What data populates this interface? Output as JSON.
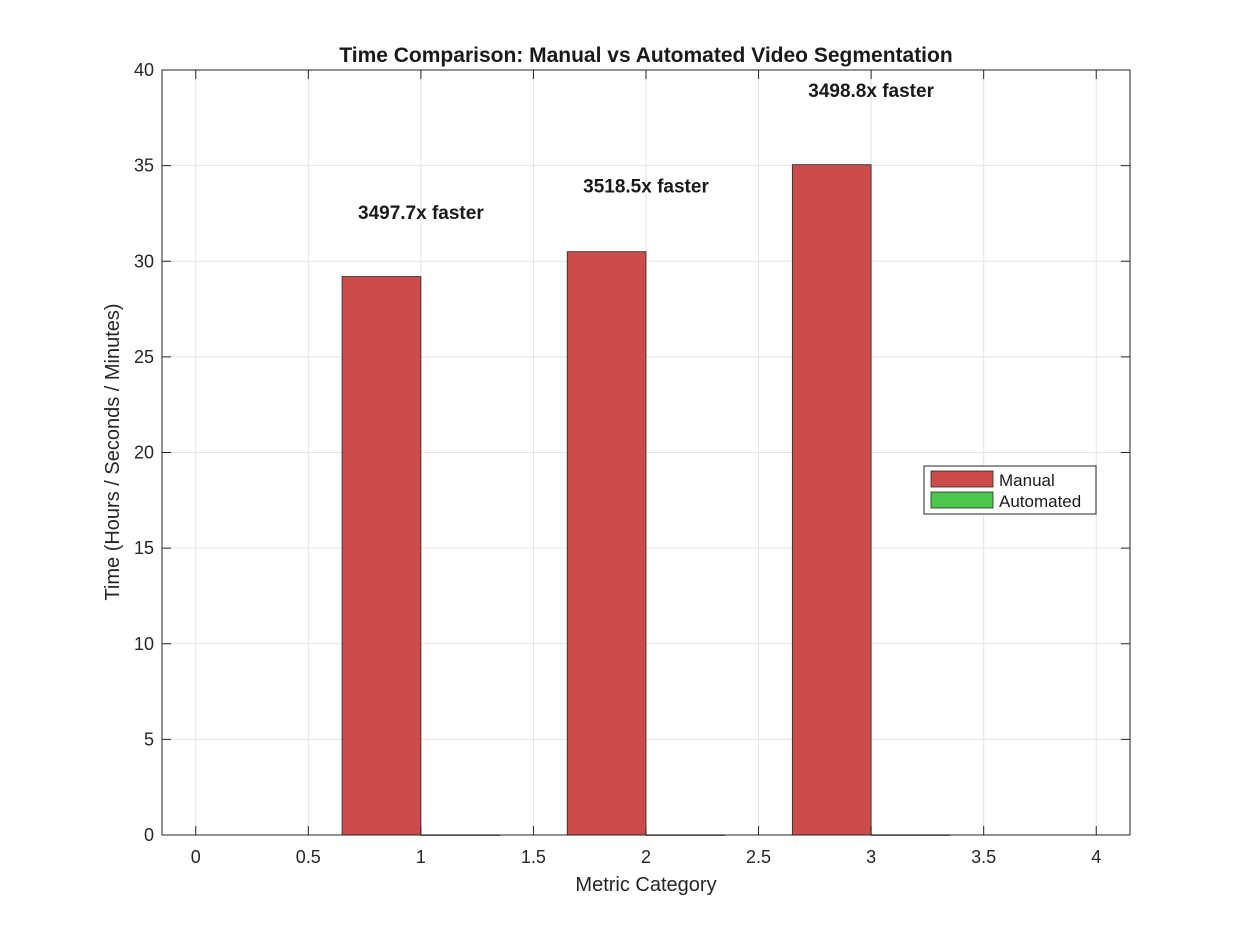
{
  "chart_data": {
    "type": "bar",
    "title": "Time Comparison: Manual vs Automated Video Segmentation",
    "xlabel": "Metric Category",
    "ylabel": "Time (Hours / Seconds / Minutes)",
    "x": [
      1,
      2,
      3
    ],
    "series": [
      {
        "name": "Manual",
        "values": [
          29.2,
          30.5,
          35.05
        ],
        "color": "#cc4c4c"
      },
      {
        "name": "Automated",
        "values": [
          0.0083,
          0.0087,
          0.01
        ],
        "color": "#4cc94c"
      }
    ],
    "annotations": [
      {
        "x": 1,
        "y": 32.2,
        "text": "3497.7x faster"
      },
      {
        "x": 2,
        "y": 33.6,
        "text": "3518.5x faster"
      },
      {
        "x": 3,
        "y": 38.6,
        "text": "3498.8x faster"
      }
    ],
    "xlim": [
      -0.15,
      4.15
    ],
    "ylim": [
      0,
      40
    ],
    "xticks": [
      0,
      0.5,
      1,
      1.5,
      2,
      2.5,
      3,
      3.5,
      4
    ],
    "xtick_labels": [
      "0",
      "0.5",
      "1",
      "1.5",
      "2",
      "2.5",
      "3",
      "3.5",
      "4"
    ],
    "yticks": [
      0,
      5,
      10,
      15,
      20,
      25,
      30,
      35,
      40
    ],
    "ytick_labels": [
      "0",
      "5",
      "10",
      "15",
      "20",
      "25",
      "30",
      "35",
      "40"
    ],
    "bar_width": 0.35,
    "grid": true,
    "legend": {
      "position": "right",
      "entries": [
        "Manual",
        "Automated"
      ]
    }
  }
}
